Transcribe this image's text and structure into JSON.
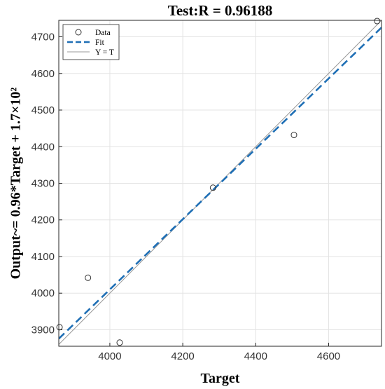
{
  "chart_data": {
    "type": "scatter",
    "title": "Test:R = 0.96188",
    "xlabel": "Target",
    "ylabel": "Output~= 0.96*Target + 1.7×10²",
    "xlim": [
      3860,
      4745
    ],
    "ylim": [
      3855,
      4745
    ],
    "xticks": [
      4000,
      4200,
      4400,
      4600
    ],
    "yticks": [
      3900,
      4000,
      4100,
      4200,
      4300,
      4400,
      4500,
      4600,
      4700
    ],
    "grid": true,
    "legend_position": "top-left",
    "series": [
      {
        "name": "Data",
        "kind": "markers",
        "marker": "circle-open",
        "color": "#333333",
        "points": [
          {
            "x": 3862,
            "y": 3907
          },
          {
            "x": 3940,
            "y": 4042
          },
          {
            "x": 4027,
            "y": 3865
          },
          {
            "x": 4283,
            "y": 4288
          },
          {
            "x": 4505,
            "y": 4432
          },
          {
            "x": 4733,
            "y": 4743
          }
        ]
      },
      {
        "name": "Fit",
        "kind": "line",
        "style": "dashed",
        "color": "#1f6fb5",
        "slope": 0.96,
        "intercept": 170
      },
      {
        "name": "Y = T",
        "kind": "line",
        "style": "solid",
        "color": "#9a9a9a",
        "slope": 1,
        "intercept": 0
      }
    ]
  }
}
